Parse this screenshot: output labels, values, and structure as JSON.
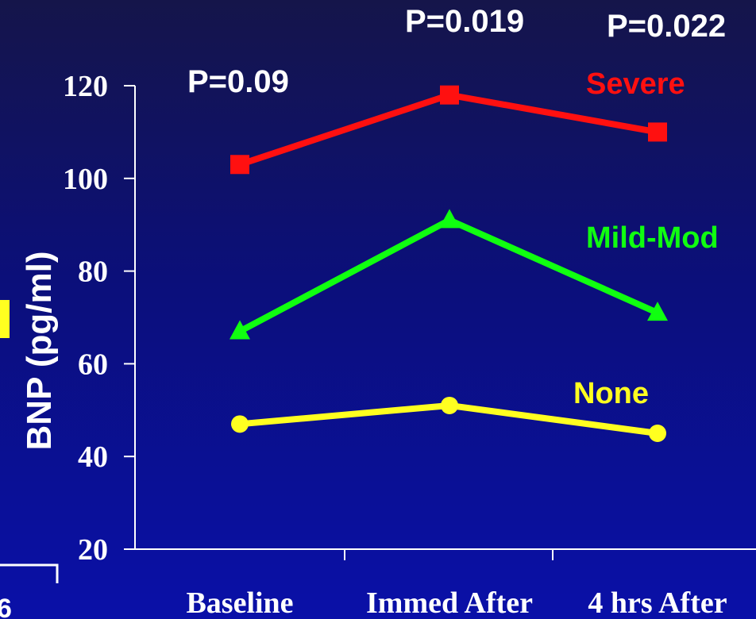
{
  "colors": {
    "severe": "#ff1010",
    "mild_mod": "#10ff10",
    "none": "#ffff20",
    "yellow_mark": "#ffff20",
    "axis": "#ffffff"
  },
  "chart_data": {
    "type": "line",
    "title": "",
    "xlabel": "",
    "ylabel": "BNP (pg/ml)",
    "categories": [
      "Baseline",
      "Immed After",
      "4 hrs After"
    ],
    "ylim": [
      20,
      120
    ],
    "yticks": [
      20,
      40,
      60,
      80,
      100,
      120
    ],
    "grid": false,
    "series": [
      {
        "name": "Severe",
        "color": "#ff1010",
        "marker": "square",
        "values": [
          103,
          118,
          110
        ]
      },
      {
        "name": "Mild-Mod",
        "color": "#10ff10",
        "marker": "triangle",
        "values": [
          67,
          91,
          71
        ]
      },
      {
        "name": "None",
        "color": "#ffff20",
        "marker": "circle",
        "values": [
          47,
          51,
          45
        ]
      }
    ],
    "annotations": [
      "P=0.09",
      "P=0.019",
      "P=0.022"
    ]
  },
  "edge_text": "6"
}
